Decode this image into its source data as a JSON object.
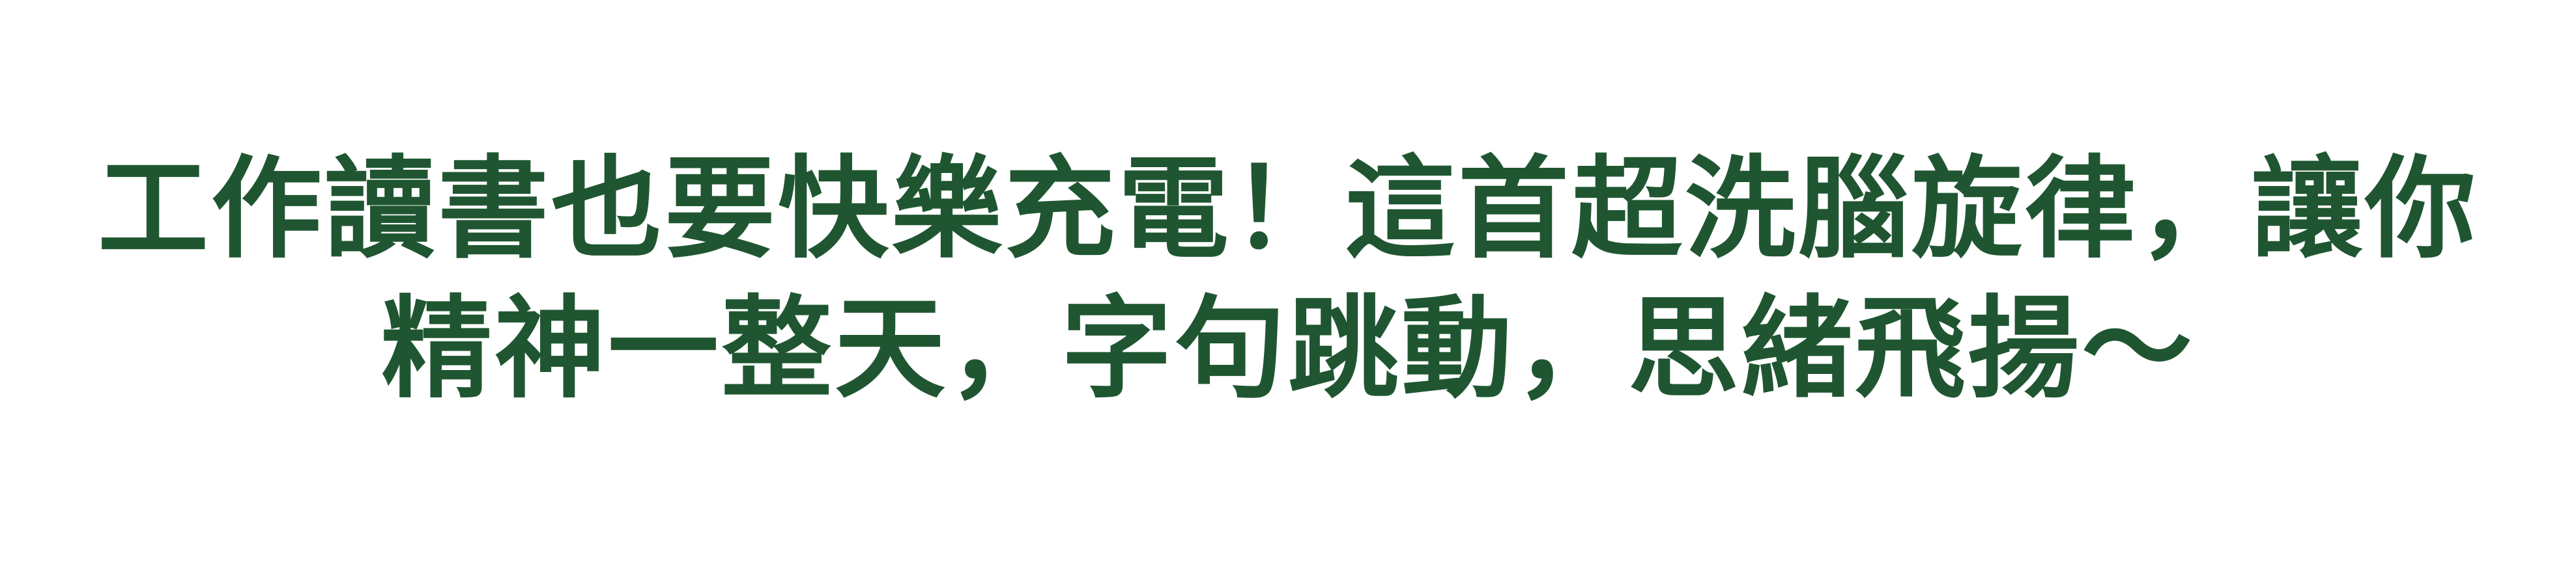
{
  "text": {
    "line1": "工作讀書也要快樂充電！這首超洗腦旋律，讓你",
    "line2": "精神一整天，字句跳動，思緒飛揚～",
    "color": "#1f5631"
  }
}
